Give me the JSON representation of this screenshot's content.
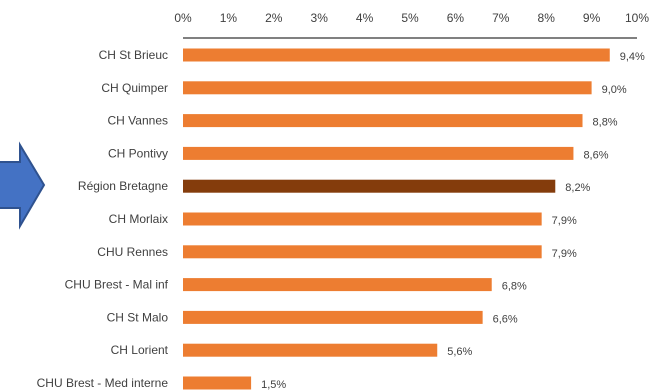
{
  "chart_data": {
    "type": "bar",
    "orientation": "horizontal",
    "categories": [
      "CH St Brieuc",
      "CH Quimper",
      "CH Vannes",
      "CH Pontivy",
      "Région Bretagne",
      "CH Morlaix",
      "CHU Rennes",
      "CHU Brest - Mal inf",
      "CH St Malo",
      "CH Lorient",
      "CHU Brest - Med interne"
    ],
    "values": [
      9.4,
      9.0,
      8.8,
      8.6,
      8.2,
      7.9,
      7.9,
      6.8,
      6.6,
      5.6,
      1.5
    ],
    "data_labels": [
      "9,4%",
      "9,0%",
      "8,8%",
      "8,6%",
      "8,2%",
      "7,9%",
      "7,9%",
      "6,8%",
      "6,6%",
      "5,6%",
      "1,5%"
    ],
    "xlim": [
      0,
      10
    ],
    "x_ticks": [
      0,
      1,
      2,
      3,
      4,
      5,
      6,
      7,
      8,
      9,
      10
    ],
    "x_tick_labels": [
      "0%",
      "1%",
      "2%",
      "3%",
      "4%",
      "5%",
      "6%",
      "7%",
      "8%",
      "9%",
      "10%"
    ],
    "x_axis_position": "top",
    "grid": false,
    "colors": {
      "bar": "#ED7D31",
      "highlight_bar": "#843C0C",
      "highlight_category": "Région Bretagne",
      "text": "#404040",
      "axis": "#000000",
      "arrow_fill": "#4472C4",
      "arrow_stroke": "#2F528F"
    }
  },
  "decoration": {
    "icon": "arrow-right-icon"
  }
}
